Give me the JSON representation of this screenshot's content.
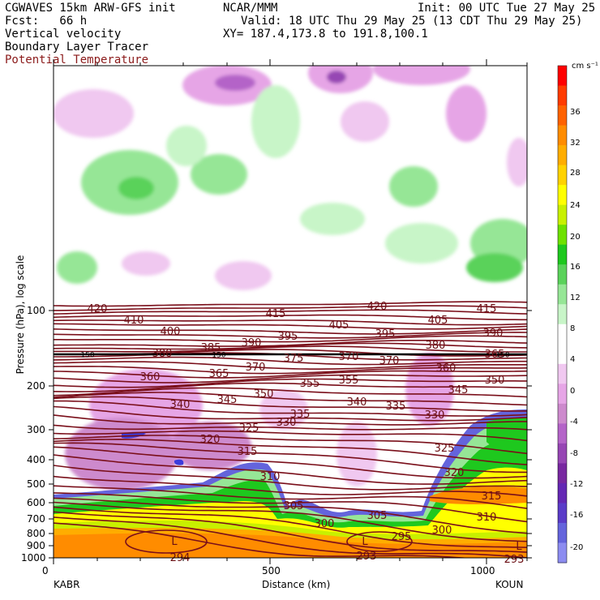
{
  "header": {
    "model": "CGWAVES 15km ARW-GFS init",
    "org": "NCAR/MMM",
    "init": "Init: 00 UTC Tue 27 May 25",
    "fcst": "Fcst:   66 h",
    "valid": "Valid: 18 UTC Thu 29 May 25 (13 CDT Thu 29 May 25)",
    "field1": "Vertical velocity",
    "field2": "Boundary Layer Tracer",
    "field3": "Potential Temperature",
    "xy": "XY= 187.4,173.8 to 191.8,100.1"
  },
  "colors": {
    "theta": "#7a0f1a",
    "field3_text": "#8b1a1a"
  },
  "chart_data": {
    "type": "contour",
    "xlabel": "Distance (km)",
    "ylabel": "Pressure (hPa), log scale",
    "xlim": [
      0,
      1100
    ],
    "x_ticks": [
      "0",
      "500",
      "1000"
    ],
    "y_ticks": [
      "100",
      "200",
      "300",
      "400",
      "500",
      "600",
      "700",
      "800",
      "900",
      "1000"
    ],
    "endpoints": {
      "left": "KABR",
      "right": "KOUN"
    },
    "colorbar": {
      "unit": "cm s⁻¹",
      "labels": [
        "36",
        "32",
        "28",
        "24",
        "20",
        "16",
        "12",
        "8",
        "4",
        "0",
        "-4",
        "-8",
        "-12",
        "-16",
        "-20"
      ],
      "colors": [
        "#ff0000",
        "#ff3b00",
        "#ff6200",
        "#ff8c00",
        "#ffad00",
        "#ffd200",
        "#ffff00",
        "#c8f000",
        "#6ee100",
        "#1ec81e",
        "#5ad25a",
        "#96e696",
        "#c8f5c8",
        "#ffffff",
        "#ffffff",
        "#f0c8f0",
        "#e6a5e6",
        "#cd8acd",
        "#b464c8",
        "#9646b4",
        "#7828a0",
        "#6428b4",
        "#5a3cc8",
        "#6464dc",
        "#8c8cf0"
      ]
    },
    "theta_labels": [
      {
        "v": "420",
        "t": [
          120,
          380
        ]
      },
      {
        "v": "415",
        "t": [
          340,
          386
        ]
      },
      {
        "v": "420",
        "t": [
          465,
          377
        ]
      },
      {
        "v": "415",
        "t": [
          600,
          380
        ]
      },
      {
        "v": "410",
        "t": [
          165,
          394
        ]
      },
      {
        "v": "405",
        "t": [
          418,
          400
        ]
      },
      {
        "v": "405",
        "t": [
          540,
          394
        ]
      },
      {
        "v": "400",
        "t": [
          210,
          408
        ]
      },
      {
        "v": "395",
        "t": [
          355,
          414
        ]
      },
      {
        "v": "395",
        "t": [
          475,
          411
        ]
      },
      {
        "v": "390",
        "t": [
          608,
          410
        ]
      },
      {
        "v": "390",
        "t": [
          310,
          422
        ]
      },
      {
        "v": "385",
        "t": [
          260,
          428
        ]
      },
      {
        "v": "380",
        "t": [
          537,
          425
        ]
      },
      {
        "v": "380",
        "t": [
          200,
          435
        ]
      },
      {
        "v": "375",
        "t": [
          362,
          441
        ]
      },
      {
        "v": "370",
        "t": [
          430,
          439
        ]
      },
      {
        "v": "370",
        "t": [
          480,
          444
        ]
      },
      {
        "v": "365",
        "t": [
          610,
          436
        ]
      },
      {
        "v": "370",
        "t": [
          315,
          452
        ]
      },
      {
        "v": "360",
        "t": [
          550,
          453
        ]
      },
      {
        "v": "360",
        "t": [
          185,
          464
        ]
      },
      {
        "v": "365",
        "t": [
          270,
          460
        ]
      },
      {
        "v": "355",
        "t": [
          382,
          472
        ]
      },
      {
        "v": "355",
        "t": [
          430,
          468
        ]
      },
      {
        "v": "350",
        "t": [
          610,
          468
        ]
      },
      {
        "v": "350",
        "t": [
          325,
          485
        ]
      },
      {
        "v": "345",
        "t": [
          565,
          480
        ]
      },
      {
        "v": "340",
        "t": [
          222,
          498
        ]
      },
      {
        "v": "345",
        "t": [
          280,
          492
        ]
      },
      {
        "v": "340",
        "t": [
          440,
          495
        ]
      },
      {
        "v": "335",
        "t": [
          488,
          500
        ]
      },
      {
        "v": "335",
        "t": [
          370,
          510
        ]
      },
      {
        "v": "330",
        "t": [
          536,
          511
        ]
      },
      {
        "v": "330",
        "t": [
          353,
          520
        ]
      },
      {
        "v": "325",
        "t": [
          307,
          527
        ]
      },
      {
        "v": "320",
        "t": [
          259,
          541
        ]
      },
      {
        "v": "325",
        "t": [
          548,
          552
        ]
      },
      {
        "v": "315",
        "t": [
          305,
          556
        ]
      },
      {
        "v": "320",
        "t": [
          560,
          582
        ]
      },
      {
        "v": "310",
        "t": [
          333,
          587
        ]
      },
      {
        "v": "315",
        "t": [
          606,
          611
        ]
      },
      {
        "v": "305",
        "t": [
          362,
          623
        ]
      },
      {
        "v": "305",
        "t": [
          465,
          635
        ]
      },
      {
        "v": "310",
        "t": [
          600,
          637
        ]
      },
      {
        "v": "300",
        "t": [
          400,
          645
        ]
      },
      {
        "v": "300",
        "t": [
          545,
          653
        ]
      },
      {
        "v": "295",
        "t": [
          495,
          661
        ]
      },
      {
        "v": "294",
        "t": [
          222,
          687
        ]
      },
      {
        "v": "293",
        "t": [
          452,
          685
        ]
      },
      {
        "v": "293",
        "t": [
          634,
          689
        ]
      }
    ],
    "special_labels": [
      {
        "v": "150",
        "t": [
          108,
          437
        ]
      },
      {
        "v": "150",
        "t": [
          270,
          437
        ]
      },
      {
        "v": "150",
        "t": [
          620,
          437
        ]
      },
      {
        "v": "L",
        "t": [
          215,
          667
        ]
      },
      {
        "v": "L",
        "t": [
          450,
          667
        ]
      },
      {
        "v": "L",
        "t": [
          640,
          673
        ]
      }
    ]
  }
}
